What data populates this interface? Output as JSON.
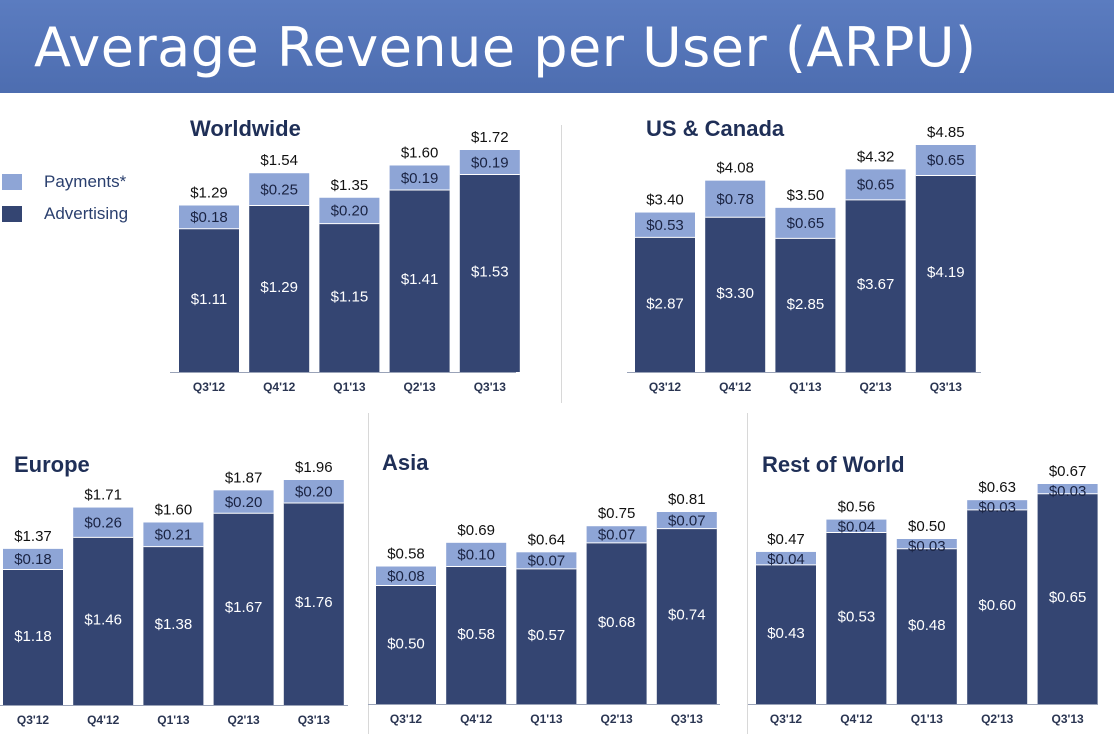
{
  "title": "Average Revenue per User (ARPU)",
  "colors": {
    "payments": "#8ea5d6",
    "advertising": "#344572",
    "title_bar": "#5575b8"
  },
  "legend": {
    "payments": "Payments*",
    "advertising": "Advertising"
  },
  "chart_data": [
    {
      "type": "bar",
      "stacked": true,
      "title": "Worldwide",
      "categories": [
        "Q3'12",
        "Q4'12",
        "Q1'13",
        "Q2'13",
        "Q3'13"
      ],
      "series": [
        {
          "name": "Advertising",
          "values": [
            1.11,
            1.29,
            1.15,
            1.41,
            1.53
          ],
          "labels": [
            "$1.11",
            "$1.29",
            "$1.15",
            "$1.41",
            "$1.53"
          ]
        },
        {
          "name": "Payments*",
          "values": [
            0.18,
            0.25,
            0.2,
            0.19,
            0.19
          ],
          "labels": [
            "$0.18",
            "$0.25",
            "$0.20",
            "$0.19",
            "$0.19"
          ]
        }
      ],
      "totals": [
        "$1.29",
        "$1.54",
        "$1.35",
        "$1.60",
        "$1.72"
      ],
      "ylim": [
        0,
        2.2
      ]
    },
    {
      "type": "bar",
      "stacked": true,
      "title": "US & Canada",
      "categories": [
        "Q3'12",
        "Q4'12",
        "Q1'13",
        "Q2'13",
        "Q3'13"
      ],
      "series": [
        {
          "name": "Advertising",
          "values": [
            2.87,
            3.3,
            2.85,
            3.67,
            4.19
          ],
          "labels": [
            "$2.87",
            "$3.30",
            "$2.85",
            "$3.67",
            "$4.19"
          ]
        },
        {
          "name": "Payments*",
          "values": [
            0.53,
            0.78,
            0.65,
            0.65,
            0.65
          ],
          "labels": [
            "$0.53",
            "$0.78",
            "$0.65",
            "$0.65",
            "$0.65"
          ]
        }
      ],
      "totals": [
        "$3.40",
        "$4.08",
        "$3.50",
        "$4.32",
        "$4.85"
      ],
      "ylim": [
        0,
        6.2
      ]
    },
    {
      "type": "bar",
      "stacked": true,
      "title": "Europe",
      "categories": [
        "Q3'12",
        "Q4'12",
        "Q1'13",
        "Q2'13",
        "Q3'13"
      ],
      "series": [
        {
          "name": "Advertising",
          "values": [
            1.18,
            1.46,
            1.38,
            1.67,
            1.76
          ],
          "labels": [
            "$1.18",
            "$1.46",
            "$1.38",
            "$1.67",
            "$1.76"
          ]
        },
        {
          "name": "Payments*",
          "values": [
            0.18,
            0.26,
            0.21,
            0.2,
            0.2
          ],
          "labels": [
            "$0.18",
            "$0.26",
            "$0.21",
            "$0.20",
            "$0.20"
          ]
        }
      ],
      "totals": [
        "$1.37",
        "$1.71",
        "$1.60",
        "$1.87",
        "$1.96"
      ],
      "ylim": [
        0,
        2.45
      ]
    },
    {
      "type": "bar",
      "stacked": true,
      "title": "Asia",
      "categories": [
        "Q3'12",
        "Q4'12",
        "Q1'13",
        "Q2'13",
        "Q3'13"
      ],
      "series": [
        {
          "name": "Advertising",
          "values": [
            0.5,
            0.58,
            0.57,
            0.68,
            0.74
          ],
          "labels": [
            "$0.50",
            "$0.58",
            "$0.57",
            "$0.68",
            "$0.74"
          ]
        },
        {
          "name": "Payments*",
          "values": [
            0.08,
            0.1,
            0.07,
            0.07,
            0.07
          ],
          "labels": [
            "$0.08",
            "$0.10",
            "$0.07",
            "$0.07",
            "$0.07"
          ]
        }
      ],
      "totals": [
        "$0.58",
        "$0.69",
        "$0.64",
        "$0.75",
        "$0.81"
      ],
      "ylim": [
        0,
        1.2
      ]
    },
    {
      "type": "bar",
      "stacked": true,
      "title": "Rest of World",
      "categories": [
        "Q3'12",
        "Q4'12",
        "Q1'13",
        "Q2'13",
        "Q3'13"
      ],
      "series": [
        {
          "name": "Advertising",
          "values": [
            0.43,
            0.53,
            0.48,
            0.6,
            0.65
          ],
          "labels": [
            "$0.43",
            "$0.53",
            "$0.48",
            "$0.60",
            "$0.65"
          ]
        },
        {
          "name": "Payments*",
          "values": [
            0.04,
            0.04,
            0.03,
            0.03,
            0.03
          ],
          "labels": [
            "$0.04",
            "$0.04",
            "$0.03",
            "$0.03",
            "$0.03"
          ]
        }
      ],
      "totals": [
        "$0.47",
        "$0.56",
        "$0.50",
        "$0.63",
        "$0.67"
      ],
      "ylim": [
        0,
        0.85
      ]
    }
  ]
}
